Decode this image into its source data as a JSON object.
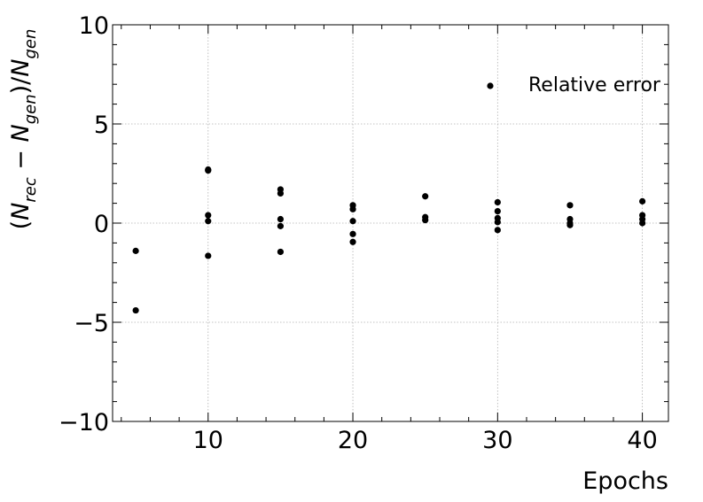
{
  "chart_data": {
    "type": "scatter",
    "title": "",
    "xlabel": "Epochs",
    "ylabel": "(N_rec − N_gen)/N_gen",
    "xlim": [
      3.4,
      41.8
    ],
    "ylim": [
      -10,
      10
    ],
    "x_ticks": [
      10,
      20,
      30,
      40
    ],
    "y_ticks": [
      10,
      5,
      0,
      -5,
      -10
    ],
    "x_tick_labels": [
      "10",
      "20",
      "30",
      "40"
    ],
    "y_tick_labels": [
      "10",
      "5",
      "0",
      "−5",
      "−10"
    ],
    "grid": true,
    "legend_position": "upper-right",
    "marker_color": "#000000",
    "series": [
      {
        "name": "Relative error",
        "points": [
          {
            "x": 5,
            "y": -1.4
          },
          {
            "x": 5,
            "y": -4.4
          },
          {
            "x": 10,
            "y": 2.7
          },
          {
            "x": 10,
            "y": 2.65
          },
          {
            "x": 10,
            "y": 0.4
          },
          {
            "x": 10,
            "y": 0.1
          },
          {
            "x": 10,
            "y": -1.65
          },
          {
            "x": 15,
            "y": 1.7
          },
          {
            "x": 15,
            "y": 1.5
          },
          {
            "x": 15,
            "y": 0.2
          },
          {
            "x": 15,
            "y": -0.15
          },
          {
            "x": 15,
            "y": -1.45
          },
          {
            "x": 20,
            "y": 0.9
          },
          {
            "x": 20,
            "y": 0.7
          },
          {
            "x": 20,
            "y": 0.1
          },
          {
            "x": 20,
            "y": -0.55
          },
          {
            "x": 20,
            "y": -0.95
          },
          {
            "x": 25,
            "y": 1.35
          },
          {
            "x": 25,
            "y": 0.3
          },
          {
            "x": 25,
            "y": 0.15
          },
          {
            "x": 30,
            "y": 1.05
          },
          {
            "x": 30,
            "y": 0.6
          },
          {
            "x": 30,
            "y": 0.25
          },
          {
            "x": 30,
            "y": 0.05
          },
          {
            "x": 30,
            "y": -0.35
          },
          {
            "x": 35,
            "y": 0.9
          },
          {
            "x": 35,
            "y": 0.2
          },
          {
            "x": 35,
            "y": 0.0
          },
          {
            "x": 35,
            "y": -0.1
          },
          {
            "x": 40,
            "y": 1.1
          },
          {
            "x": 40,
            "y": 0.4
          },
          {
            "x": 40,
            "y": 0.2
          },
          {
            "x": 40,
            "y": 0.0
          }
        ]
      }
    ]
  }
}
